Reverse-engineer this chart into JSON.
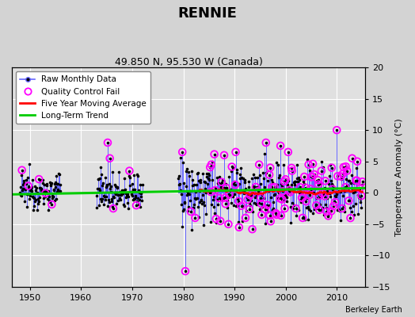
{
  "title": "RENNIE",
  "subtitle": "49.850 N, 95.530 W (Canada)",
  "ylabel_right": "Temperature Anomaly (°C)",
  "credit": "Berkeley Earth",
  "xlim": [
    1946.5,
    2015.5
  ],
  "ylim": [
    -15,
    20
  ],
  "yticks_left": [
    -15,
    -10,
    -5,
    0,
    5,
    10,
    15,
    20
  ],
  "yticks_right": [
    -15,
    -10,
    -5,
    0,
    5,
    10,
    15,
    20
  ],
  "xticks": [
    1950,
    1960,
    1970,
    1980,
    1990,
    2000,
    2010
  ],
  "bg_color": "#d3d3d3",
  "plot_bg_color": "#e0e0e0",
  "grid_color": "#ffffff",
  "raw_line_color": "#6666ff",
  "raw_dot_color": "#000000",
  "qc_color": "#ff00ff",
  "moving_avg_color": "#ff0000",
  "trend_color": "#00cc00",
  "raw_linewidth": 0.7,
  "raw_dot_size": 2.5,
  "qc_marker_size": 6,
  "moving_avg_linewidth": 1.8,
  "trend_linewidth": 2.2,
  "legend_fontsize": 7.5,
  "title_fontsize": 13,
  "subtitle_fontsize": 9,
  "tick_labelsize": 8
}
